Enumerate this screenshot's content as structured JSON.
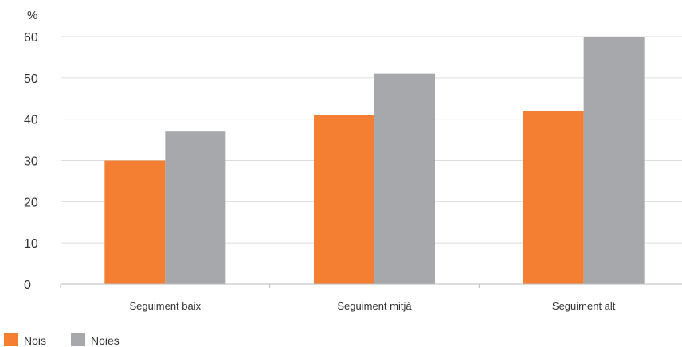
{
  "title": "",
  "chart_data": {
    "type": "bar",
    "title": "",
    "xlabel": "",
    "ylabel": "%",
    "categories": [
      "Seguiment baix",
      "Seguiment mitjà",
      "Seguiment alt"
    ],
    "series": [
      {
        "name": "Nois",
        "values": [
          30,
          41,
          42
        ],
        "color": "#f47f32"
      },
      {
        "name": "Noies",
        "values": [
          37,
          51,
          60
        ],
        "color": "#a7a8ab"
      }
    ],
    "ylim": [
      0,
      60
    ],
    "yticks": [
      0,
      10,
      20,
      30,
      40,
      50,
      60
    ],
    "grid": true,
    "legend": "bottom-left",
    "colors": {
      "title": "#f47f32",
      "grid": "#dddddd",
      "axis": "#bbbbbb"
    }
  }
}
